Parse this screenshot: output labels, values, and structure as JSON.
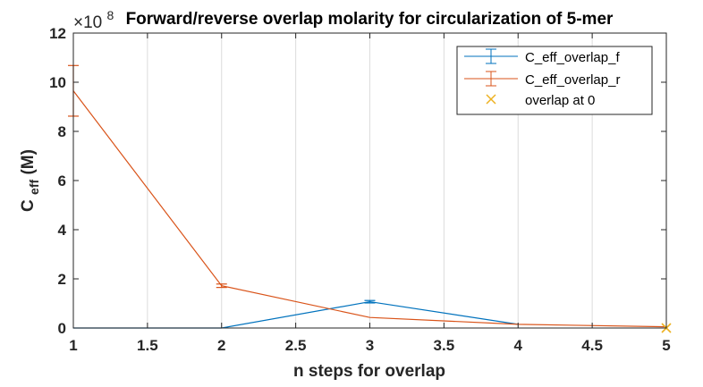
{
  "chart_data": {
    "type": "line",
    "title": "Forward/reverse overlap molarity for circularization of 5-mer",
    "xlabel": "n steps for overlap",
    "ylabel_main": "C",
    "ylabel_sub": "eff",
    "ylabel_unit": " (M)",
    "y_exponent_base": "×10",
    "y_exponent_power": "8",
    "xlim": [
      1,
      5
    ],
    "ylim": [
      0,
      12
    ],
    "x_ticks": [
      1,
      1.5,
      2,
      2.5,
      3,
      3.5,
      4,
      4.5,
      5
    ],
    "x_tick_labels": [
      "1",
      "1.5",
      "2",
      "2.5",
      "3",
      "3.5",
      "4",
      "4.5",
      "5"
    ],
    "y_ticks": [
      0,
      2,
      4,
      6,
      8,
      10,
      12
    ],
    "y_tick_labels": [
      "0",
      "2",
      "4",
      "6",
      "8",
      "10",
      "12"
    ],
    "x_grid": true,
    "y_grid": false,
    "legend_position": "top-right",
    "series": [
      {
        "name": "C_eff_overlap_f",
        "color": "#0072BD",
        "x": [
          1,
          2,
          3,
          4
        ],
        "y": [
          0,
          0,
          1.07,
          0.15
        ],
        "err": [
          0,
          0,
          0.05,
          0
        ]
      },
      {
        "name": "C_eff_overlap_r",
        "color": "#D95319",
        "x": [
          1,
          2,
          3,
          4,
          5
        ],
        "y": [
          9.65,
          1.72,
          0.43,
          0.15,
          0.05
        ],
        "err": [
          1.03,
          0.07,
          0,
          0,
          0
        ]
      }
    ],
    "markers": [
      {
        "name": "overlap at 0",
        "color": "#EDB120",
        "symbol": "x",
        "x": 5,
        "y": 0
      }
    ]
  }
}
